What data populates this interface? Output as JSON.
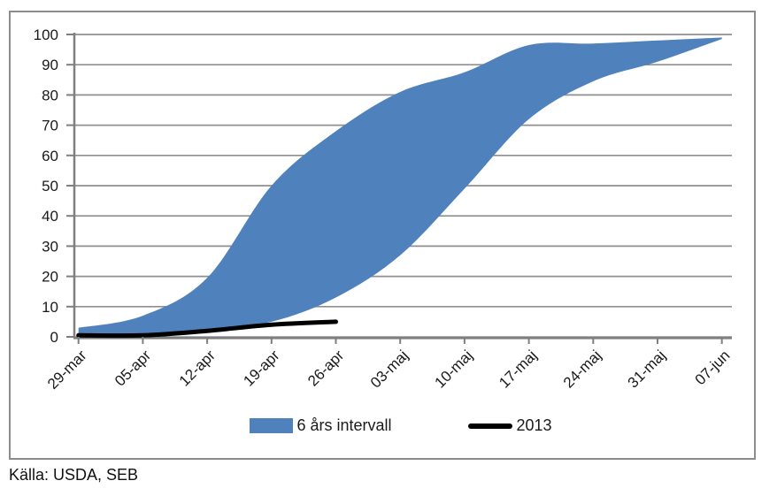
{
  "chart_data": {
    "type": "area",
    "categories": [
      "29-mar",
      "05-apr",
      "12-apr",
      "19-apr",
      "26-apr",
      "03-maj",
      "10-maj",
      "17-maj",
      "24-maj",
      "31-maj",
      "07-jun"
    ],
    "series": [
      {
        "name": "6 års intervall",
        "type": "band",
        "color": "#4f81bd",
        "upper": [
          3,
          7,
          19.5,
          50,
          68,
          81,
          87.5,
          96.5,
          97,
          98,
          99
        ],
        "lower": [
          0.5,
          1,
          2.5,
          5,
          13,
          27,
          49,
          72,
          84.5,
          91,
          98.5
        ]
      },
      {
        "name": "2013",
        "type": "line",
        "color": "#000000",
        "values": [
          0.5,
          0.5,
          2,
          4,
          5
        ]
      }
    ],
    "ylim": [
      0,
      100
    ],
    "y_ticks": [
      0,
      10,
      20,
      30,
      40,
      50,
      60,
      70,
      80,
      90,
      100
    ],
    "grid": "horizontal",
    "legend_position": "bottom"
  },
  "footer": {
    "source": "Källa: USDA, SEB"
  },
  "colors": {
    "band": "#4f81bd",
    "line_2013": "#000000",
    "grid": "#8f8f8f",
    "axis": "#7f7f7f",
    "border": "#8c8c8c",
    "text": "#1a1a1a"
  }
}
